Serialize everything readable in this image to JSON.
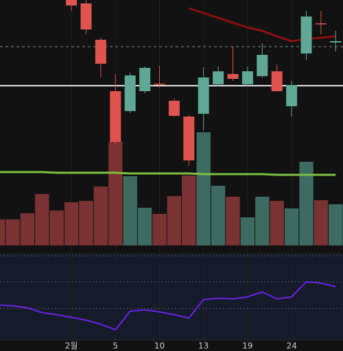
{
  "chart_data": [
    {
      "type": "candlestick",
      "categories": [
        null,
        null,
        null,
        null,
        null,
        "2월",
        null,
        null,
        "5",
        null,
        null,
        "10",
        null,
        null,
        "13",
        null,
        null,
        "19",
        null,
        null,
        "24",
        null,
        null,
        null
      ],
      "open": [
        null,
        null,
        null,
        null,
        null,
        360,
        355,
        302,
        227,
        198,
        227,
        238,
        213,
        190,
        194,
        237,
        252,
        237,
        249,
        256,
        205,
        282,
        326,
        298
      ],
      "high": [
        null,
        null,
        null,
        null,
        null,
        362,
        360,
        305,
        252,
        254,
        263,
        264,
        217,
        192,
        262,
        263,
        292,
        263,
        297,
        266,
        242,
        344,
        344,
        315
      ],
      "low": [
        null,
        null,
        null,
        null,
        null,
        344,
        310,
        247,
        150,
        195,
        224,
        232,
        190,
        118,
        170,
        234,
        242,
        234,
        247,
        227,
        190,
        273,
        310,
        285
      ],
      "close": [
        null,
        null,
        null,
        null,
        null,
        352,
        317,
        267,
        153,
        250,
        261,
        237,
        191,
        126,
        247,
        256,
        245,
        256,
        280,
        227,
        236,
        336,
        325,
        300
      ],
      "up_color": "#5fa896",
      "down_color": "#e0544f",
      "ylim": [
        0,
        360
      ],
      "series": [
        {
          "color": "#8b1010",
          "values": [
            null,
            null,
            null,
            null,
            null,
            null,
            null,
            null,
            null,
            null,
            null,
            null,
            null,
            348,
            341,
            334,
            327,
            320,
            315,
            307,
            300,
            303,
            305,
            307
          ]
        },
        {
          "color": "#7cc242",
          "values": [
            109,
            109,
            109,
            109,
            108,
            108,
            108,
            108,
            108,
            107,
            107,
            107,
            107,
            107,
            106,
            106,
            106,
            106,
            106,
            105,
            105,
            105,
            105,
            105
          ]
        }
      ],
      "levels": [
        {
          "value": 292,
          "color": "#8a8a8a",
          "style": "dashed"
        },
        {
          "value": 235,
          "color": "#e6e6e6",
          "style": "solid"
        }
      ],
      "volume": {
        "ylim": [
          0,
          358
        ],
        "values": [
          38,
          38,
          47,
          75,
          51,
          63,
          65,
          86,
          151,
          101,
          55,
          46,
          72,
          102,
          165,
          87,
          71,
          41,
          71,
          65,
          54,
          122,
          66,
          60
        ],
        "colors": [
          "#7a3232",
          "#7a3232",
          "#7a3232",
          "#7a3232",
          "#7a3232",
          "#7a3232",
          "#7a3232",
          "#7a3232",
          "#7a3232",
          "#3d6b61",
          "#3d6b61",
          "#7a3232",
          "#7a3232",
          "#7a3232",
          "#3d6b61",
          "#3d6b61",
          "#7a3232",
          "#3d6b61",
          "#3d6b61",
          "#7a3232",
          "#3d6b61",
          "#3d6b61",
          "#7a3232",
          "#3d6b61"
        ]
      }
    },
    {
      "type": "line",
      "values": [
        50,
        49,
        46,
        39,
        36,
        32,
        28,
        22,
        14,
        41,
        43,
        40,
        36,
        31,
        58,
        60,
        59,
        62,
        69,
        59,
        62,
        84,
        82,
        77
      ],
      "color": "#6a22e8",
      "ylim": [
        0,
        123
      ],
      "levels": [
        122,
        84,
        45
      ]
    }
  ]
}
